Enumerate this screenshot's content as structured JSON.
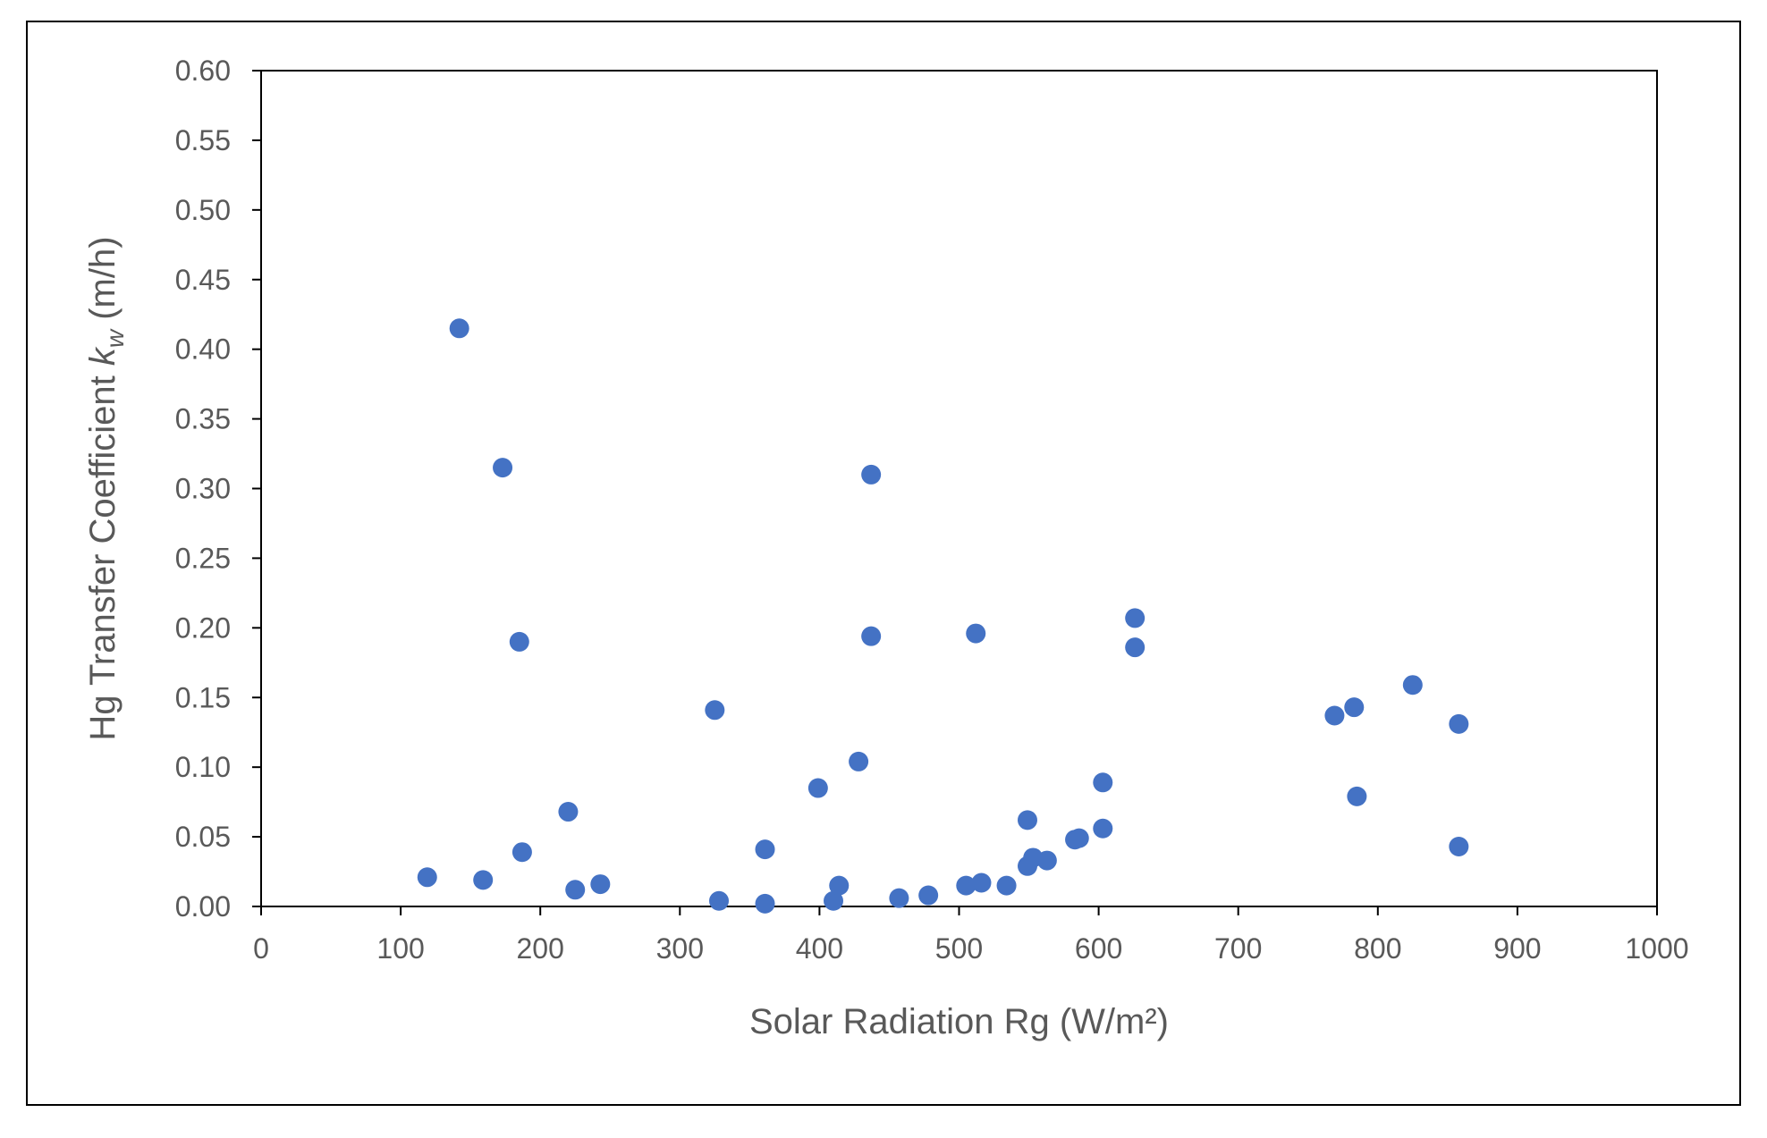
{
  "chart_data": {
    "type": "scatter",
    "title": "",
    "xlabel": "Solar Radiation Rg (W/m²)",
    "ylabel": "Hg Transfer Coefficient k_w (m/h)",
    "ylabel_parts": {
      "prefix": "Hg Transfer Coefficient ",
      "k": "k",
      "sub": "w",
      "suffix": " (m/h)"
    },
    "xlim": [
      0,
      1000
    ],
    "ylim": [
      0,
      0.6
    ],
    "x_ticks": [
      0,
      100,
      200,
      300,
      400,
      500,
      600,
      700,
      800,
      900,
      1000
    ],
    "x_tick_labels": [
      "0",
      "100",
      "200",
      "300",
      "400",
      "500",
      "600",
      "700",
      "800",
      "900",
      "1000"
    ],
    "y_ticks": [
      0,
      0.05,
      0.1,
      0.15,
      0.2,
      0.25,
      0.3,
      0.35,
      0.4,
      0.45,
      0.5,
      0.55,
      0.6
    ],
    "y_tick_labels": [
      "0.00",
      "0.05",
      "0.10",
      "0.15",
      "0.20",
      "0.25",
      "0.30",
      "0.35",
      "0.40",
      "0.45",
      "0.50",
      "0.55",
      "0.60"
    ],
    "grid": false,
    "legend": null,
    "marker_color": "#4472C4",
    "series": [
      {
        "name": "kw",
        "points": [
          [
            142,
            0.415
          ],
          [
            173,
            0.315
          ],
          [
            185,
            0.19
          ],
          [
            119,
            0.021
          ],
          [
            159,
            0.019
          ],
          [
            187,
            0.039
          ],
          [
            220,
            0.068
          ],
          [
            225,
            0.012
          ],
          [
            243,
            0.016
          ],
          [
            325,
            0.141
          ],
          [
            328,
            0.004
          ],
          [
            361,
            0.002
          ],
          [
            361,
            0.041
          ],
          [
            399,
            0.085
          ],
          [
            410,
            0.004
          ],
          [
            414,
            0.015
          ],
          [
            428,
            0.104
          ],
          [
            437,
            0.31
          ],
          [
            437,
            0.194
          ],
          [
            457,
            0.006
          ],
          [
            478,
            0.008
          ],
          [
            505,
            0.015
          ],
          [
            512,
            0.196
          ],
          [
            516,
            0.017
          ],
          [
            534,
            0.015
          ],
          [
            549,
            0.062
          ],
          [
            549,
            0.029
          ],
          [
            553,
            0.035
          ],
          [
            563,
            0.033
          ],
          [
            583,
            0.048
          ],
          [
            586,
            0.049
          ],
          [
            603,
            0.089
          ],
          [
            603,
            0.056
          ],
          [
            626,
            0.207
          ],
          [
            626,
            0.186
          ],
          [
            769,
            0.137
          ],
          [
            783,
            0.143
          ],
          [
            785,
            0.079
          ],
          [
            825,
            0.159
          ],
          [
            858,
            0.131
          ],
          [
            858,
            0.043
          ]
        ]
      }
    ]
  }
}
